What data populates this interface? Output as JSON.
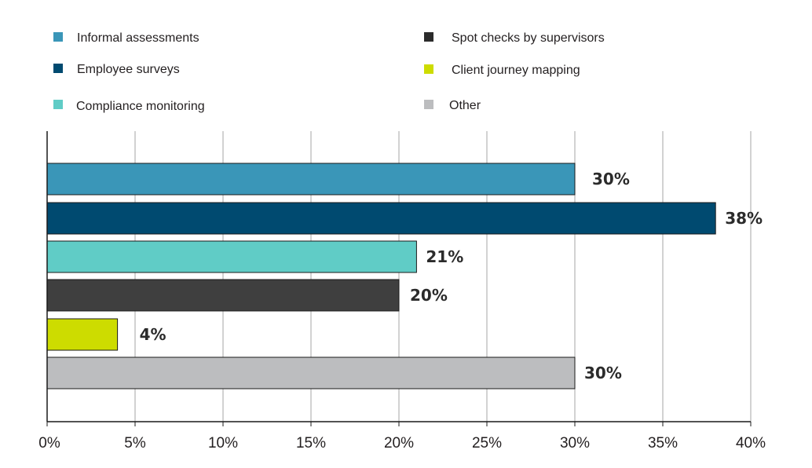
{
  "chart_data": {
    "type": "bar",
    "orientation": "horizontal",
    "categories": [
      "Informal assessments",
      "Employee surveys",
      "Compliance monitoring",
      "Spot checks by supervisors",
      "Client journey mapping",
      "Other"
    ],
    "values": [
      30,
      38,
      21,
      20,
      4,
      30
    ],
    "data_labels": [
      "30%",
      "38%",
      "21%",
      "20%",
      "4%",
      "30%"
    ],
    "colors": [
      "#3a96b8",
      "#004a70",
      "#60ccc6",
      "#3f3f3f",
      "#cddc00",
      "#bcbdbf"
    ],
    "xlim": [
      0,
      40
    ],
    "x_ticks": [
      0,
      5,
      10,
      15,
      20,
      25,
      30,
      35,
      40
    ],
    "x_tick_labels": [
      "0%",
      "5%",
      "10%",
      "15%",
      "20%",
      "25%",
      "30%",
      "35%",
      "40%"
    ],
    "grid": "vertical",
    "legend": {
      "placement": "top",
      "columns": 2,
      "entries": [
        {
          "label": "Informal assessments",
          "color": "#3a96b8"
        },
        {
          "label": "Employee surveys",
          "color": "#004a70"
        },
        {
          "label": "Compliance monitoring",
          "color": "#60ccc6"
        },
        {
          "label": "Spot checks by supervisors",
          "color": "#2b2b2b"
        },
        {
          "label": "Client journey mapping",
          "color": "#cddc00"
        },
        {
          "label": "Other",
          "color": "#bcbdbf"
        }
      ]
    },
    "title": "",
    "xlabel": "",
    "ylabel": ""
  }
}
